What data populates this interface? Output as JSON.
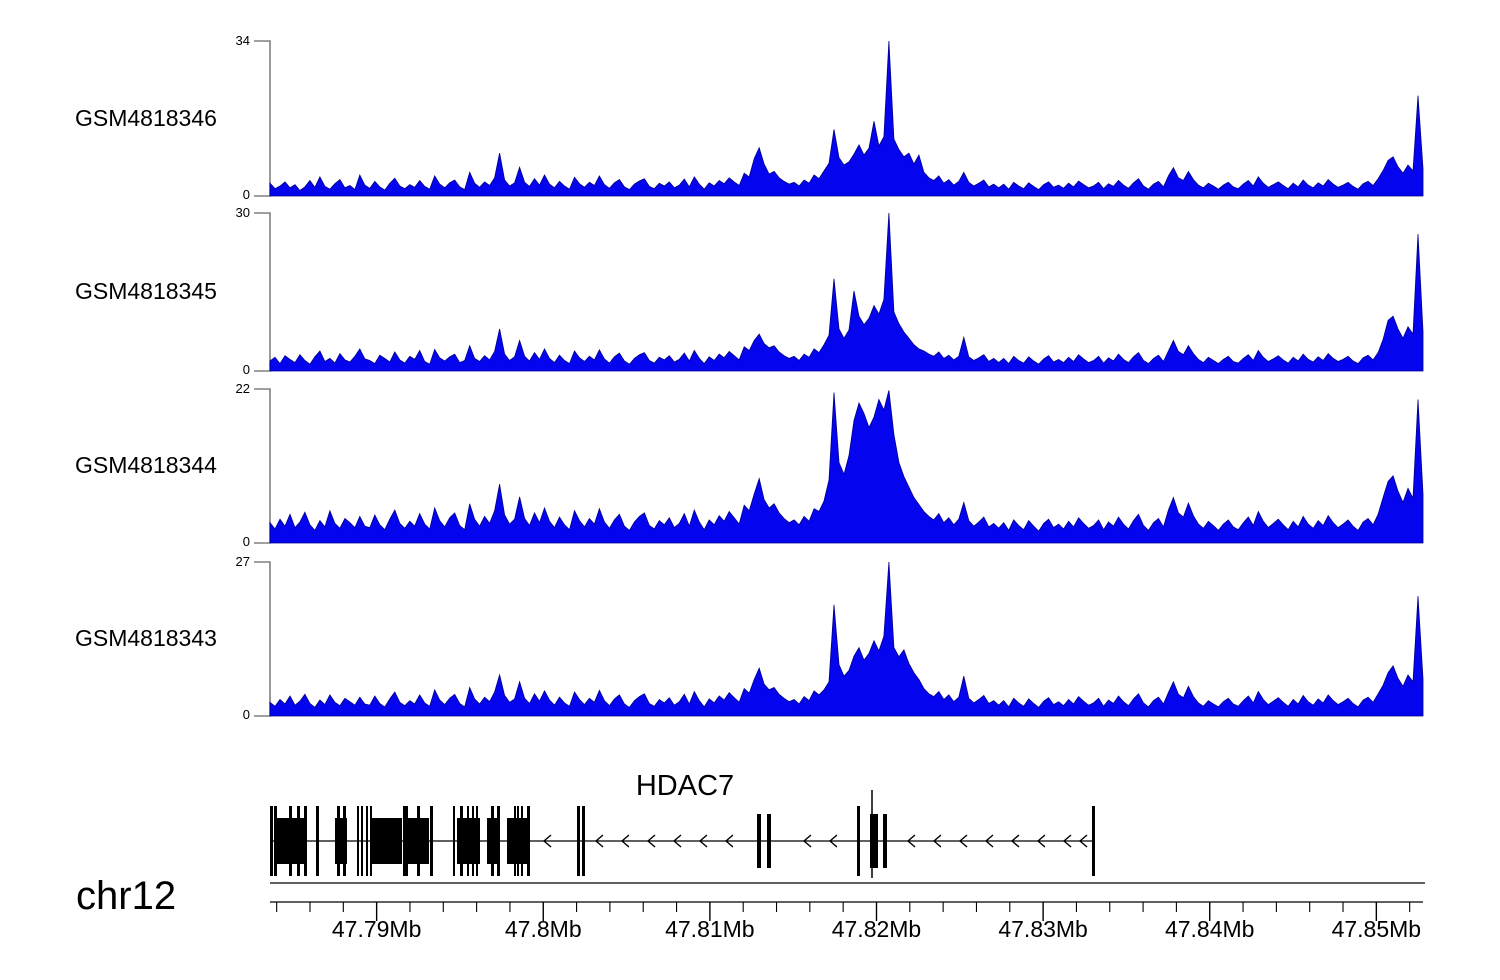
{
  "labels": {
    "chromosome": "chr12",
    "gene_title": "HDAC7"
  },
  "chart_data": {
    "type": "area",
    "title": "ChIP-seq coverage tracks over HDAC7 locus",
    "chromosome": "chr12",
    "gene": "HDAC7",
    "signal_color": "#0404ee",
    "signal_stroke": "#00008b",
    "axis_color": "#808080",
    "x_axis": {
      "tick_labels": [
        "47.79Mb",
        "47.8Mb",
        "47.81Mb",
        "47.82Mb",
        "47.83Mb",
        "47.84Mb",
        "47.85Mb"
      ],
      "tick_mb": [
        47.79,
        47.8,
        47.81,
        47.82,
        47.83,
        47.84,
        47.85
      ],
      "minor_tick_step_mb": 0.002,
      "view_start_mb": 47.7836,
      "view_end_mb": 47.8528
    },
    "tracks": [
      {
        "label": "GSM4818346",
        "ymin": 0,
        "ymax": 34,
        "values": [
          2.8,
          1.6,
          2.2,
          3.1,
          1.8,
          2.5,
          1.2,
          2.0,
          3.4,
          1.9,
          4.2,
          2.1,
          1.5,
          2.7,
          3.6,
          1.8,
          2.3,
          1.4,
          4.6,
          2.4,
          1.7,
          3.2,
          2.0,
          1.3,
          2.8,
          3.9,
          2.2,
          1.6,
          2.5,
          1.9,
          3.4,
          2.1,
          1.5,
          4.4,
          2.6,
          1.8,
          2.9,
          3.5,
          2.0,
          1.4,
          5.2,
          2.8,
          1.9,
          3.1,
          2.3,
          4.0,
          9.4,
          3.5,
          2.2,
          2.9,
          6.3,
          3.0,
          2.1,
          3.8,
          2.4,
          4.6,
          2.6,
          1.8,
          3.2,
          2.2,
          1.5,
          4.1,
          2.7,
          1.9,
          3.0,
          2.3,
          4.4,
          2.5,
          1.7,
          2.9,
          3.6,
          2.0,
          1.4,
          2.6,
          3.3,
          3.8,
          2.1,
          1.6,
          2.8,
          2.2,
          3.1,
          1.8,
          2.4,
          3.7,
          2.0,
          4.2,
          2.6,
          1.5,
          2.9,
          2.2,
          3.4,
          2.7,
          4.0,
          3.1,
          2.3,
          5.0,
          4.2,
          8.2,
          10.6,
          7.0,
          4.8,
          5.4,
          4.0,
          3.2,
          2.6,
          3.0,
          2.2,
          3.5,
          2.8,
          4.6,
          3.8,
          5.5,
          7.2,
          14.6,
          8.4,
          6.8,
          7.5,
          9.2,
          11.2,
          9.0,
          10.5,
          16.4,
          11.0,
          13.0,
          34.0,
          12.5,
          10.2,
          8.6,
          9.4,
          7.0,
          9.0,
          5.2,
          4.0,
          3.4,
          4.4,
          2.8,
          3.6,
          2.4,
          3.2,
          5.2,
          3.0,
          2.2,
          2.8,
          3.5,
          2.0,
          2.6,
          1.8,
          2.6,
          1.5,
          3.0,
          2.2,
          1.6,
          2.9,
          2.1,
          1.4,
          2.5,
          3.1,
          1.9,
          2.4,
          1.7,
          2.8,
          2.0,
          3.3,
          2.5,
          1.8,
          2.2,
          3.0,
          1.6,
          2.7,
          2.1,
          3.4,
          2.4,
          1.7,
          2.9,
          3.8,
          2.2,
          1.5,
          2.6,
          3.2,
          2.0,
          4.4,
          6.2,
          4.0,
          3.4,
          5.4,
          3.6,
          2.4,
          1.8,
          2.8,
          2.2,
          1.5,
          2.4,
          3.0,
          2.0,
          1.6,
          2.6,
          3.4,
          2.2,
          4.2,
          2.8,
          1.9,
          2.5,
          3.1,
          2.3,
          1.6,
          2.8,
          2.0,
          3.5,
          2.4,
          1.8,
          2.9,
          2.2,
          3.6,
          2.6,
          1.9,
          2.4,
          3.0,
          2.1,
          1.5,
          2.7,
          3.2,
          2.3,
          3.8,
          5.6,
          7.8,
          8.6,
          6.4,
          5.0,
          6.8,
          5.5,
          22.0,
          6.0
        ]
      },
      {
        "label": "GSM4818345",
        "ymin": 0,
        "ymax": 30,
        "values": [
          1.9,
          2.6,
          1.4,
          2.9,
          2.2,
          1.6,
          3.1,
          2.0,
          1.3,
          2.7,
          3.8,
          1.8,
          2.4,
          1.5,
          3.3,
          2.1,
          1.7,
          2.8,
          4.2,
          2.3,
          2.0,
          1.4,
          3.0,
          2.4,
          1.7,
          3.6,
          2.1,
          1.5,
          2.8,
          2.2,
          3.9,
          1.8,
          1.3,
          4.1,
          2.5,
          1.9,
          2.7,
          3.2,
          1.6,
          2.0,
          4.8,
          2.4,
          1.8,
          2.9,
          2.1,
          3.7,
          8.0,
          3.2,
          2.0,
          2.7,
          5.8,
          2.8,
          1.9,
          3.5,
          2.2,
          4.2,
          2.4,
          1.6,
          3.0,
          2.0,
          1.4,
          3.8,
          2.5,
          1.8,
          2.8,
          2.1,
          4.0,
          2.3,
          1.5,
          2.7,
          3.4,
          1.9,
          1.3,
          2.4,
          3.1,
          3.5,
          2.0,
          1.5,
          2.6,
          2.1,
          2.9,
          1.7,
          2.2,
          3.4,
          1.9,
          3.9,
          2.4,
          1.4,
          2.7,
          2.0,
          3.2,
          2.5,
          3.7,
          2.9,
          2.1,
          4.6,
          3.9,
          5.8,
          7.0,
          5.2,
          4.4,
          4.8,
          3.6,
          2.9,
          2.4,
          2.8,
          2.0,
          3.2,
          2.6,
          4.2,
          3.5,
          5.0,
          6.8,
          17.5,
          8.0,
          6.2,
          7.8,
          15.2,
          10.4,
          8.8,
          10.0,
          12.4,
          10.8,
          13.6,
          30.0,
          11.2,
          9.0,
          7.4,
          6.2,
          5.0,
          4.2,
          3.8,
          3.2,
          2.8,
          3.6,
          2.4,
          3.0,
          2.1,
          2.8,
          6.4,
          2.7,
          2.0,
          2.5,
          3.1,
          1.8,
          2.4,
          1.6,
          2.4,
          1.4,
          2.8,
          2.0,
          1.5,
          2.7,
          1.9,
          1.3,
          2.3,
          2.9,
          1.7,
          2.2,
          1.6,
          2.6,
          1.8,
          3.1,
          2.3,
          1.6,
          2.0,
          2.8,
          1.5,
          2.5,
          1.9,
          3.2,
          2.2,
          1.6,
          2.7,
          3.5,
          2.0,
          1.4,
          2.4,
          3.0,
          1.8,
          3.8,
          5.8,
          3.7,
          3.1,
          4.8,
          3.3,
          2.2,
          1.6,
          2.6,
          2.0,
          1.4,
          2.2,
          2.8,
          1.8,
          1.5,
          2.4,
          3.1,
          2.0,
          3.9,
          2.6,
          1.8,
          2.3,
          2.9,
          2.1,
          1.5,
          2.6,
          1.9,
          3.2,
          2.2,
          1.7,
          2.7,
          2.0,
          3.3,
          2.4,
          1.8,
          2.2,
          2.8,
          1.9,
          1.4,
          2.5,
          3.0,
          2.1,
          3.5,
          6.0,
          9.6,
          10.4,
          8.0,
          6.2,
          8.4,
          7.0,
          26.0,
          7.5
        ]
      },
      {
        "label": "GSM4818344",
        "ymin": 0,
        "ymax": 22,
        "values": [
          2.9,
          2.0,
          3.4,
          2.4,
          4.1,
          2.2,
          3.0,
          4.4,
          2.6,
          1.8,
          3.2,
          2.3,
          4.6,
          2.8,
          2.1,
          3.5,
          2.9,
          2.2,
          3.8,
          2.4,
          2.2,
          4.0,
          2.6,
          1.9,
          3.4,
          4.7,
          2.8,
          2.1,
          3.1,
          2.4,
          4.2,
          2.7,
          2.0,
          5.0,
          3.2,
          2.3,
          3.6,
          4.3,
          2.5,
          1.9,
          5.6,
          3.4,
          2.4,
          3.8,
          2.8,
          4.6,
          8.4,
          4.0,
          2.7,
          3.4,
          6.6,
          3.5,
          2.5,
          4.3,
          2.9,
          5.0,
          3.1,
          2.2,
          3.7,
          2.6,
          1.9,
          4.6,
          3.2,
          2.3,
          3.5,
          2.7,
          4.9,
          3.0,
          2.1,
          3.3,
          4.1,
          2.4,
          1.8,
          3.0,
          3.8,
          4.3,
          2.5,
          2.0,
          3.2,
          2.6,
          3.6,
          2.2,
          2.8,
          4.2,
          2.4,
          4.7,
          3.0,
          1.9,
          3.3,
          2.6,
          3.9,
          3.1,
          4.5,
          3.6,
          2.7,
          5.4,
          4.6,
          7.0,
          9.2,
          6.2,
          5.0,
          5.6,
          4.3,
          3.5,
          2.9,
          3.3,
          2.6,
          3.8,
          3.1,
          4.9,
          4.5,
          6.0,
          9.0,
          21.5,
          11.5,
          9.8,
          12.5,
          17.5,
          20.0,
          18.5,
          16.5,
          18.0,
          20.5,
          19.0,
          21.8,
          15.5,
          11.5,
          9.5,
          8.0,
          6.5,
          5.5,
          4.5,
          3.8,
          3.3,
          4.2,
          2.9,
          3.6,
          2.6,
          3.4,
          5.8,
          3.2,
          2.4,
          3.0,
          3.7,
          2.3,
          2.8,
          2.1,
          2.9,
          1.8,
          3.3,
          2.5,
          1.9,
          3.2,
          2.4,
          1.7,
          2.8,
          3.4,
          2.2,
          2.7,
          2.0,
          3.1,
          2.3,
          3.6,
          2.8,
          2.1,
          2.5,
          3.3,
          1.9,
          3.0,
          2.4,
          3.7,
          2.7,
          2.0,
          3.2,
          4.1,
          2.5,
          1.8,
          2.9,
          3.5,
          2.3,
          4.7,
          6.5,
          4.3,
          3.7,
          5.7,
          3.9,
          2.7,
          2.1,
          3.1,
          2.5,
          1.8,
          2.7,
          3.3,
          2.3,
          1.9,
          2.9,
          3.7,
          2.5,
          4.5,
          3.1,
          2.2,
          2.8,
          3.4,
          2.6,
          1.9,
          3.1,
          2.3,
          3.8,
          2.7,
          2.1,
          3.2,
          2.5,
          3.9,
          2.9,
          2.2,
          2.7,
          3.3,
          2.4,
          1.8,
          3.0,
          3.5,
          2.6,
          4.1,
          6.5,
          8.8,
          9.6,
          7.4,
          5.8,
          7.8,
          6.4,
          20.5,
          7.0
        ]
      },
      {
        "label": "GSM4818343",
        "ymin": 0,
        "ymax": 27,
        "values": [
          2.4,
          1.7,
          2.9,
          2.1,
          3.5,
          1.9,
          2.6,
          3.8,
          2.2,
          1.5,
          2.8,
          2.0,
          3.7,
          2.4,
          1.8,
          3.1,
          2.5,
          1.9,
          3.3,
          2.1,
          1.9,
          3.5,
          2.2,
          1.6,
          3.0,
          4.2,
          2.4,
          1.8,
          2.7,
          2.1,
          3.7,
          2.3,
          1.7,
          4.6,
          2.8,
          2.0,
          3.1,
          3.8,
          2.2,
          1.6,
          5.0,
          3.0,
          2.1,
          3.3,
          2.5,
          4.2,
          7.2,
          3.6,
          2.4,
          3.0,
          6.0,
          3.1,
          2.2,
          3.9,
          2.6,
          4.4,
          2.8,
          1.9,
          3.3,
          2.3,
          1.7,
          4.2,
          2.9,
          2.0,
          3.1,
          2.4,
          4.5,
          2.7,
          1.8,
          3.0,
          3.7,
          2.1,
          1.5,
          2.7,
          3.4,
          3.9,
          2.2,
          1.7,
          2.9,
          2.3,
          3.2,
          1.9,
          2.5,
          3.8,
          2.1,
          4.3,
          2.7,
          1.6,
          3.0,
          2.3,
          3.5,
          2.8,
          4.1,
          3.2,
          2.4,
          4.8,
          4.0,
          6.4,
          8.4,
          5.6,
          4.6,
          5.0,
          3.8,
          3.1,
          2.5,
          2.9,
          2.1,
          3.4,
          2.7,
          4.4,
          3.7,
          4.6,
          6.0,
          19.5,
          9.0,
          7.0,
          8.0,
          10.5,
          12.0,
          9.8,
          11.0,
          13.2,
          11.4,
          14.0,
          27.0,
          12.0,
          10.4,
          11.6,
          9.2,
          7.6,
          6.4,
          4.8,
          3.9,
          3.4,
          4.3,
          2.9,
          3.7,
          2.5,
          3.3,
          7.0,
          3.1,
          2.3,
          2.9,
          3.6,
          2.2,
          2.7,
          1.9,
          2.7,
          1.6,
          3.1,
          2.3,
          1.7,
          3.0,
          2.2,
          1.5,
          2.6,
          3.2,
          2.0,
          2.5,
          1.8,
          2.9,
          2.1,
          3.4,
          2.6,
          1.9,
          2.3,
          3.1,
          1.7,
          2.8,
          2.2,
          3.5,
          2.5,
          1.8,
          3.0,
          3.9,
          2.3,
          1.6,
          2.7,
          3.3,
          2.1,
          4.1,
          6.0,
          3.8,
          3.2,
          5.2,
          3.4,
          2.3,
          1.7,
          2.7,
          2.1,
          1.6,
          2.5,
          3.1,
          2.1,
          1.7,
          2.7,
          3.5,
          2.3,
          4.3,
          2.9,
          2.0,
          2.6,
          3.2,
          2.4,
          1.7,
          2.9,
          2.1,
          3.6,
          2.5,
          1.9,
          3.0,
          2.3,
          3.7,
          2.7,
          2.0,
          2.5,
          3.1,
          2.2,
          1.6,
          2.8,
          3.3,
          2.4,
          3.9,
          5.4,
          7.6,
          8.8,
          6.6,
          5.2,
          7.2,
          6.0,
          21.0,
          6.5
        ]
      }
    ]
  },
  "gene_model": {
    "name": "HDAC7",
    "strand": "-",
    "span": [
      0,
      824
    ],
    "tall_exons": [
      [
        0,
        3
      ],
      [
        4,
        3
      ],
      [
        19,
        3
      ],
      [
        27,
        3
      ],
      [
        34,
        3
      ],
      [
        46,
        3
      ],
      [
        67,
        3
      ],
      [
        73,
        3
      ],
      [
        87,
        2
      ],
      [
        91,
        2
      ],
      [
        96,
        2
      ],
      [
        100,
        2
      ],
      [
        133,
        3
      ],
      [
        136,
        2
      ],
      [
        147,
        3
      ],
      [
        160,
        3
      ],
      [
        183,
        2
      ],
      [
        190,
        3
      ],
      [
        197,
        2
      ],
      [
        202,
        2
      ],
      [
        206,
        2
      ],
      [
        221,
        3
      ],
      [
        227,
        3
      ],
      [
        244,
        2
      ],
      [
        247,
        2
      ],
      [
        251,
        2
      ],
      [
        257,
        3
      ],
      [
        307,
        3
      ],
      [
        312,
        3
      ],
      [
        587,
        3
      ],
      [
        822,
        3
      ]
    ],
    "block_exons": [
      [
        6,
        28
      ],
      [
        65,
        12
      ],
      [
        102,
        30
      ],
      [
        137,
        22
      ],
      [
        187,
        23
      ],
      [
        217,
        12
      ],
      [
        237,
        17
      ],
      [
        252,
        8
      ]
    ],
    "mid_exons": [
      [
        487,
        4
      ],
      [
        497,
        4
      ],
      [
        600,
        8
      ],
      [
        613,
        4
      ]
    ],
    "span_lines": [
      602
    ]
  }
}
